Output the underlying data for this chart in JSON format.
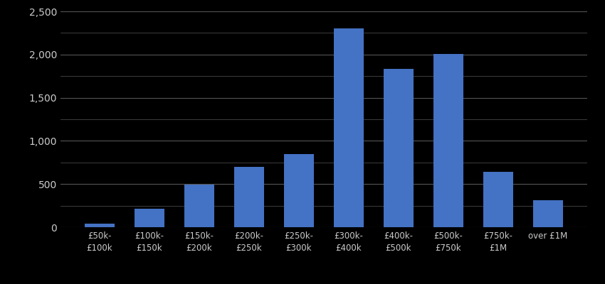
{
  "categories": [
    "£50k-\n£100k",
    "£100k-\n£150k",
    "£150k-\n£200k",
    "£200k-\n£250k",
    "£250k-\n£300k",
    "£300k-\n£400k",
    "£400k-\n£500k",
    "£500k-\n£750k",
    "£750k-\n£1M",
    "over £1M"
  ],
  "values": [
    40,
    210,
    490,
    700,
    850,
    2300,
    1830,
    2010,
    640,
    310
  ],
  "bar_color": "#4472c4",
  "background_color": "#000000",
  "text_color": "#cccccc",
  "grid_color": "#555555",
  "ylim": [
    0,
    2500
  ],
  "yticks": [
    0,
    500,
    1000,
    1500,
    2000,
    2500
  ],
  "minor_yticks": [
    250,
    750,
    1250,
    1750,
    2250
  ],
  "figsize": [
    8.5,
    4.0
  ],
  "dpi": 100
}
